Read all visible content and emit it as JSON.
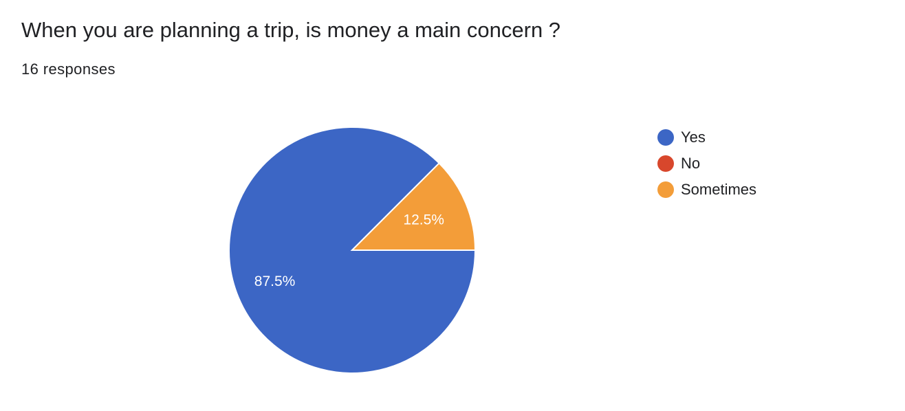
{
  "header": {
    "title": "When you are planning a trip, is money a main concern ?",
    "responses": "16 responses"
  },
  "chart_data": {
    "type": "pie",
    "title": "When you are planning a trip, is money a main concern ?",
    "total_responses": 16,
    "categories": [
      "Yes",
      "No",
      "Sometimes"
    ],
    "values": [
      87.5,
      0,
      12.5
    ],
    "value_labels": [
      "87.5%",
      "",
      "12.5%"
    ],
    "colors": [
      "#3c66c5",
      "#d8472c",
      "#f39d39"
    ],
    "legend_placement": "right"
  }
}
